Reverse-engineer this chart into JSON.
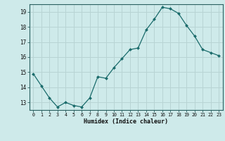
{
  "x": [
    0,
    1,
    2,
    3,
    4,
    5,
    6,
    7,
    8,
    9,
    10,
    11,
    12,
    13,
    14,
    15,
    16,
    17,
    18,
    19,
    20,
    21,
    22,
    23
  ],
  "y": [
    14.9,
    14.1,
    13.3,
    12.7,
    13.0,
    12.8,
    12.7,
    13.3,
    14.7,
    14.6,
    15.3,
    15.9,
    16.5,
    16.6,
    17.8,
    18.5,
    19.3,
    19.2,
    18.9,
    18.1,
    17.4,
    16.5,
    16.3,
    16.1
  ],
  "xlabel": "Humidex (Indice chaleur)",
  "ylim": [
    12.5,
    19.5
  ],
  "xlim": [
    -0.5,
    23.5
  ],
  "bg_color": "#ceeaea",
  "grid_color": "#b8d4d4",
  "line_color": "#1a6b6b",
  "marker_color": "#1a6b6b",
  "yticks": [
    13,
    14,
    15,
    16,
    17,
    18,
    19
  ],
  "xticks": [
    0,
    1,
    2,
    3,
    4,
    5,
    6,
    7,
    8,
    9,
    10,
    11,
    12,
    13,
    14,
    15,
    16,
    17,
    18,
    19,
    20,
    21,
    22,
    23
  ]
}
